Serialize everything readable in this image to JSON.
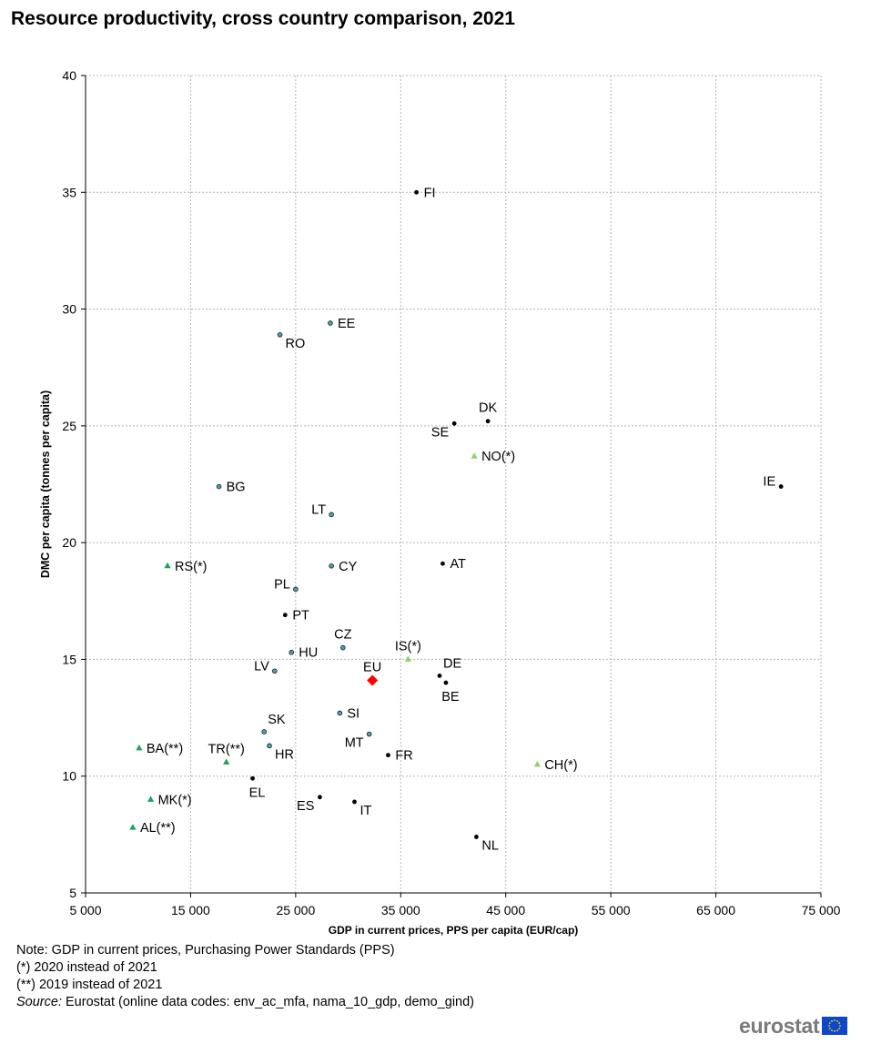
{
  "title": "Resource productivity, cross country comparison, 2021",
  "chart_data": {
    "type": "scatter",
    "title": "Resource productivity, cross country comparison, 2021",
    "xlabel": "GDP in current prices, PPS per capita (EUR/cap)",
    "ylabel": "DMC per capita (tonnes per capita)",
    "xlim": [
      5000,
      75000
    ],
    "ylim": [
      5,
      40
    ],
    "x_ticks": [
      5000,
      15000,
      25000,
      35000,
      45000,
      55000,
      65000,
      75000
    ],
    "x_tick_labels": [
      "5 000",
      "15 000",
      "25 000",
      "35 000",
      "45 000",
      "55 000",
      "65 000",
      "75 000"
    ],
    "y_ticks": [
      5,
      10,
      15,
      20,
      25,
      30,
      35,
      40
    ],
    "y_tick_labels": [
      "5",
      "10",
      "15",
      "20",
      "25",
      "30",
      "35",
      "40"
    ],
    "grid": true,
    "colors": {
      "black": "#000000",
      "teal": "#4aa3a8",
      "eu": "#ff0000",
      "green_dark": "#1fa060",
      "green_light": "#8cd26c"
    },
    "points": [
      {
        "label": "FI",
        "x": 36500,
        "y": 35.0,
        "marker": "dot-black",
        "label_pos": "right"
      },
      {
        "label": "EE",
        "x": 28300,
        "y": 29.4,
        "marker": "dot-teal",
        "label_pos": "right"
      },
      {
        "label": "RO",
        "x": 23500,
        "y": 28.9,
        "marker": "dot-teal",
        "label_pos": "below-right"
      },
      {
        "label": "DK",
        "x": 43300,
        "y": 25.2,
        "marker": "dot-black",
        "label_pos": "above"
      },
      {
        "label": "SE",
        "x": 40100,
        "y": 25.1,
        "marker": "dot-black",
        "label_pos": "below-left"
      },
      {
        "label": "NO(*)",
        "x": 42000,
        "y": 23.7,
        "marker": "tri-light",
        "label_pos": "right"
      },
      {
        "label": "IE",
        "x": 71200,
        "y": 22.4,
        "marker": "dot-black",
        "label_pos": "left"
      },
      {
        "label": "BG",
        "x": 17700,
        "y": 22.4,
        "marker": "dot-teal",
        "label_pos": "right"
      },
      {
        "label": "LT",
        "x": 28400,
        "y": 21.2,
        "marker": "dot-teal",
        "label_pos": "left"
      },
      {
        "label": "RS(*)",
        "x": 12800,
        "y": 19.0,
        "marker": "tri-dark",
        "label_pos": "right"
      },
      {
        "label": "CY",
        "x": 28400,
        "y": 19.0,
        "marker": "dot-teal",
        "label_pos": "right"
      },
      {
        "label": "AT",
        "x": 39000,
        "y": 19.1,
        "marker": "dot-black",
        "label_pos": "right"
      },
      {
        "label": "PL",
        "x": 25000,
        "y": 18.0,
        "marker": "dot-teal",
        "label_pos": "left"
      },
      {
        "label": "PT",
        "x": 24000,
        "y": 16.9,
        "marker": "dot-black",
        "label_pos": "right"
      },
      {
        "label": "CZ",
        "x": 29500,
        "y": 15.5,
        "marker": "dot-teal",
        "label_pos": "above"
      },
      {
        "label": "IS(*)",
        "x": 35700,
        "y": 15.0,
        "marker": "tri-light",
        "label_pos": "above"
      },
      {
        "label": "HU",
        "x": 24600,
        "y": 15.3,
        "marker": "dot-teal",
        "label_pos": "right"
      },
      {
        "label": "LV",
        "x": 23000,
        "y": 14.5,
        "marker": "dot-teal",
        "label_pos": "left"
      },
      {
        "label": "EU",
        "x": 32300,
        "y": 14.1,
        "marker": "diamond-red",
        "label_pos": "above"
      },
      {
        "label": "DE",
        "x": 38700,
        "y": 14.3,
        "marker": "dot-black",
        "label_pos": "above-right"
      },
      {
        "label": "BE",
        "x": 39300,
        "y": 14.0,
        "marker": "dot-black",
        "label_pos": "below"
      },
      {
        "label": "SI",
        "x": 29200,
        "y": 12.7,
        "marker": "dot-teal",
        "label_pos": "right"
      },
      {
        "label": "SK",
        "x": 22000,
        "y": 11.9,
        "marker": "dot-teal",
        "label_pos": "above-right"
      },
      {
        "label": "MT",
        "x": 32000,
        "y": 11.8,
        "marker": "dot-teal",
        "label_pos": "below-left"
      },
      {
        "label": "BA(**)",
        "x": 10100,
        "y": 11.2,
        "marker": "tri-dark",
        "label_pos": "right"
      },
      {
        "label": "HR",
        "x": 22500,
        "y": 11.3,
        "marker": "dot-teal",
        "label_pos": "below-right"
      },
      {
        "label": "TR(**)",
        "x": 18400,
        "y": 10.6,
        "marker": "tri-dark",
        "label_pos": "above"
      },
      {
        "label": "FR",
        "x": 33800,
        "y": 10.9,
        "marker": "dot-black",
        "label_pos": "right"
      },
      {
        "label": "CH(*)",
        "x": 48000,
        "y": 10.5,
        "marker": "tri-light",
        "label_pos": "right"
      },
      {
        "label": "EL",
        "x": 20900,
        "y": 9.9,
        "marker": "dot-black",
        "label_pos": "below"
      },
      {
        "label": "ES",
        "x": 27300,
        "y": 9.1,
        "marker": "dot-black",
        "label_pos": "below-left"
      },
      {
        "label": "IT",
        "x": 30600,
        "y": 8.9,
        "marker": "dot-black",
        "label_pos": "below-right"
      },
      {
        "label": "MK(*)",
        "x": 11200,
        "y": 9.0,
        "marker": "tri-dark",
        "label_pos": "right"
      },
      {
        "label": "AL(**)",
        "x": 9500,
        "y": 7.8,
        "marker": "tri-dark",
        "label_pos": "right"
      },
      {
        "label": "NL",
        "x": 42200,
        "y": 7.4,
        "marker": "dot-black",
        "label_pos": "below-right"
      }
    ]
  },
  "notes": {
    "line1": "Note: GDP in current prices, Purchasing Power Standards (PPS)",
    "line2": "(*) 2020 instead of 2021",
    "line3": "(**) 2019 instead of 2021",
    "source_label": "Source:",
    "source_text": " Eurostat (online data codes: env_ac_mfa, nama_10_gdp, demo_gind)"
  },
  "logo": {
    "text": "eurostat",
    "icon": "eu-flag-icon"
  }
}
